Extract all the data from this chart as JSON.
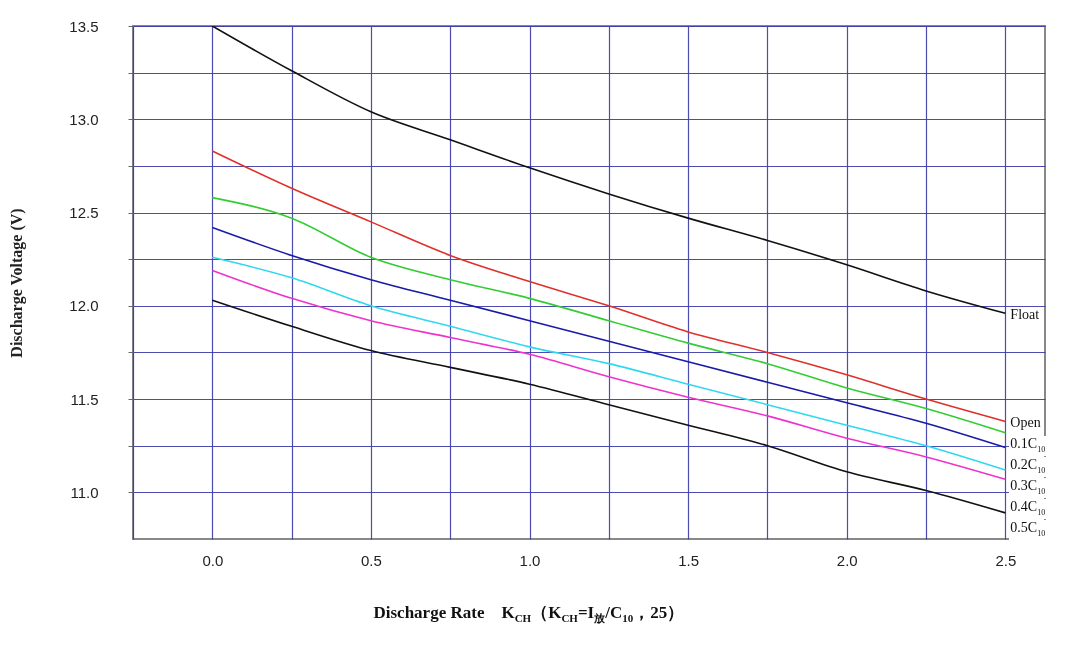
{
  "chart_data": {
    "type": "line",
    "xlabel": "Discharge Rate　K$_{CH}$（K$_{CH}$=I$_{放}$/C$_{10}$，25）",
    "ylabel": "Discharge Voltage (V)",
    "x": [
      0,
      0.25,
      0.5,
      0.75,
      1.0,
      1.25,
      1.5,
      1.75,
      2.0,
      2.25,
      2.5
    ],
    "series": [
      {
        "name": "Float",
        "color": "#111111",
        "values": [
          13.5,
          13.26,
          13.04,
          12.89,
          12.74,
          12.6,
          12.47,
          12.35,
          12.22,
          12.08,
          11.96
        ]
      },
      {
        "name": "Open",
        "color": "#e0302a",
        "values": [
          12.83,
          12.63,
          12.45,
          12.27,
          12.13,
          12.0,
          11.86,
          11.75,
          11.63,
          11.5,
          11.38
        ]
      },
      {
        "name": "0.1C$_{10}$",
        "color": "#33cc33",
        "values": [
          12.58,
          12.47,
          12.26,
          12.14,
          12.04,
          11.92,
          11.8,
          11.69,
          11.56,
          11.45,
          11.32
        ]
      },
      {
        "name": "0.2C$_{10}$",
        "color": "#1a1aa8",
        "values": [
          12.42,
          12.27,
          12.14,
          12.03,
          11.92,
          11.81,
          11.7,
          11.59,
          11.48,
          11.37,
          11.24
        ]
      },
      {
        "name": "0.3C$_{10}$",
        "color": "#30d8ee",
        "values": [
          12.26,
          12.15,
          12.0,
          11.89,
          11.78,
          11.69,
          11.58,
          11.47,
          11.36,
          11.25,
          11.12
        ]
      },
      {
        "name": "0.4C$_{10}$",
        "color": "#ee33cc",
        "values": [
          12.19,
          12.04,
          11.92,
          11.83,
          11.74,
          11.62,
          11.51,
          11.41,
          11.29,
          11.19,
          11.07
        ]
      },
      {
        "name": "0.5C$_{10}$",
        "color": "#111111",
        "values": [
          12.03,
          11.89,
          11.76,
          11.67,
          11.58,
          11.47,
          11.36,
          11.25,
          11.11,
          11.01,
          10.89
        ]
      }
    ],
    "xlim": [
      -0.25,
      2.625
    ],
    "ylim": [
      10.75,
      13.5
    ],
    "xticks": [
      {
        "value": -0.25,
        "label": null
      },
      {
        "value": 0,
        "label": "0.0"
      },
      {
        "value": 0.25,
        "label": null
      },
      0.5,
      {
        "value": 0.75,
        "label": null
      },
      {
        "value": 1,
        "label": "1.0"
      },
      {
        "value": 1.25,
        "label": null
      },
      1.5,
      {
        "value": 1.75,
        "label": null
      },
      {
        "value": 2,
        "label": "2.0"
      },
      {
        "value": 2.25,
        "label": null
      },
      2.5
    ],
    "yticks": [
      {
        "value": 11,
        "label": "11.0"
      },
      {
        "value": 11.25,
        "label": null
      },
      11.5,
      {
        "value": 11.75,
        "label": null
      },
      {
        "value": 12,
        "label": "12.0"
      },
      {
        "value": 12.25,
        "label": null
      },
      12.5,
      {
        "value": 12.75,
        "label": null
      },
      {
        "value": 13,
        "label": "13.0"
      },
      {
        "value": 13.25,
        "label": null
      },
      13.5
    ],
    "grid": true
  }
}
